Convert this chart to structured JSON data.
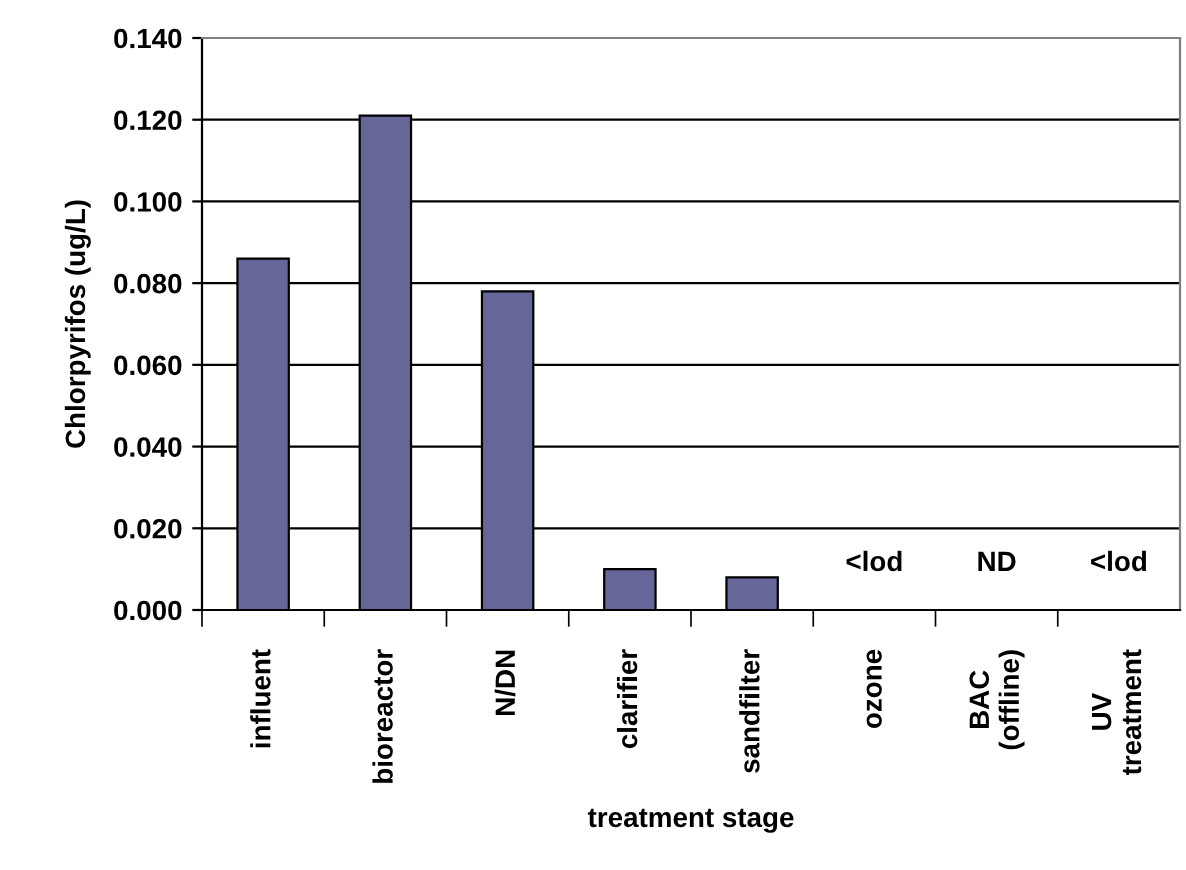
{
  "chart_data": {
    "type": "bar",
    "xlabel": "treatment stage",
    "ylabel": "Chlorpyrifos (ug/L)",
    "categories": [
      "influent",
      "bioreactor",
      "N/DN",
      "clarifier",
      "sandfilter",
      "ozone",
      "BAC\n(offline)",
      "UV\ntreatment"
    ],
    "values": [
      0.086,
      0.121,
      0.078,
      0.01,
      0.008,
      null,
      null,
      null
    ],
    "color": "#666699",
    "ylim": [
      0,
      0.14
    ],
    "yticks": [
      {
        "value": 0,
        "label": "0.000"
      },
      {
        "value": 0.02,
        "label": "0.020"
      },
      {
        "value": 0.04,
        "label": "0.040"
      },
      {
        "value": 0.06,
        "label": "0.060"
      },
      {
        "value": 0.08,
        "label": "0.080"
      },
      {
        "value": 0.1,
        "label": "0.100"
      },
      {
        "value": 0.12,
        "label": "0.120"
      },
      {
        "value": 0.14,
        "label": "0.140"
      }
    ],
    "grid": "y",
    "annotations": [
      "<lod",
      "ND",
      "<lod"
    ]
  }
}
